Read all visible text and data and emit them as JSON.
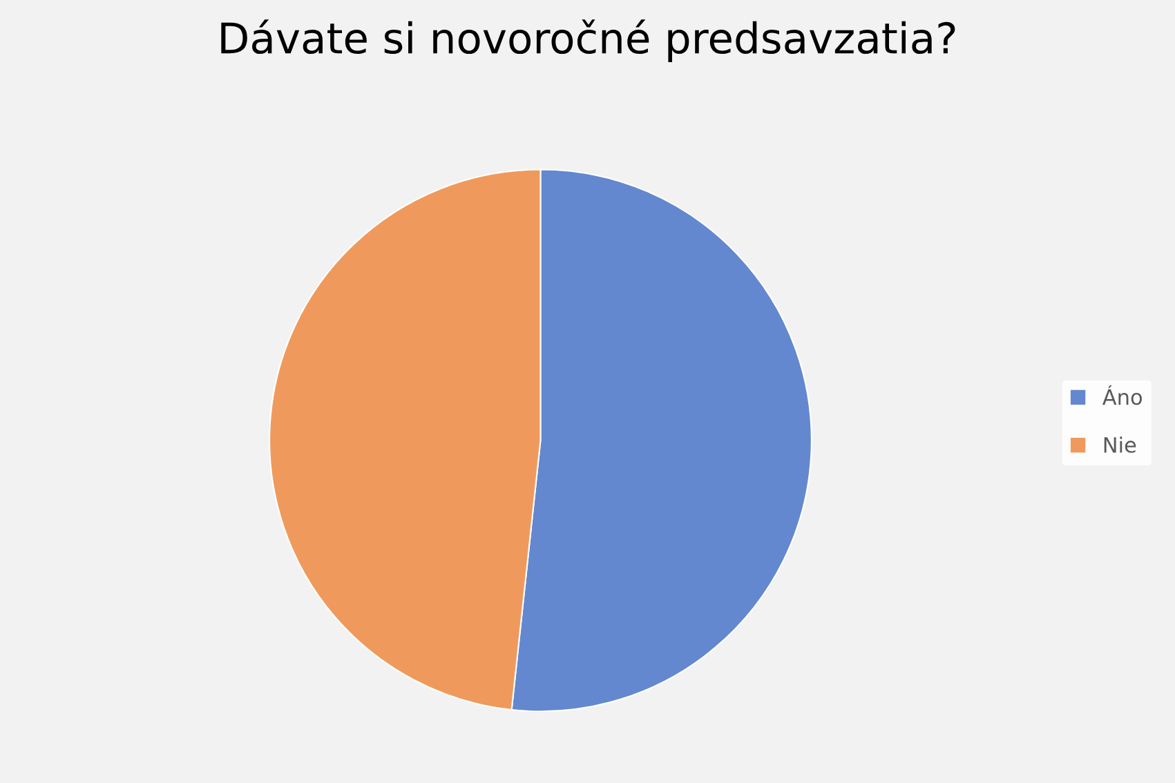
{
  "chart_data": {
    "type": "pie",
    "title": "Dávate si novoročné predsavzatia?",
    "categories": [
      "Áno",
      "Nie"
    ],
    "values": [
      51.7,
      48.3
    ],
    "colors": [
      "#6388cf",
      "#ef9a5c"
    ],
    "legend": "right"
  }
}
